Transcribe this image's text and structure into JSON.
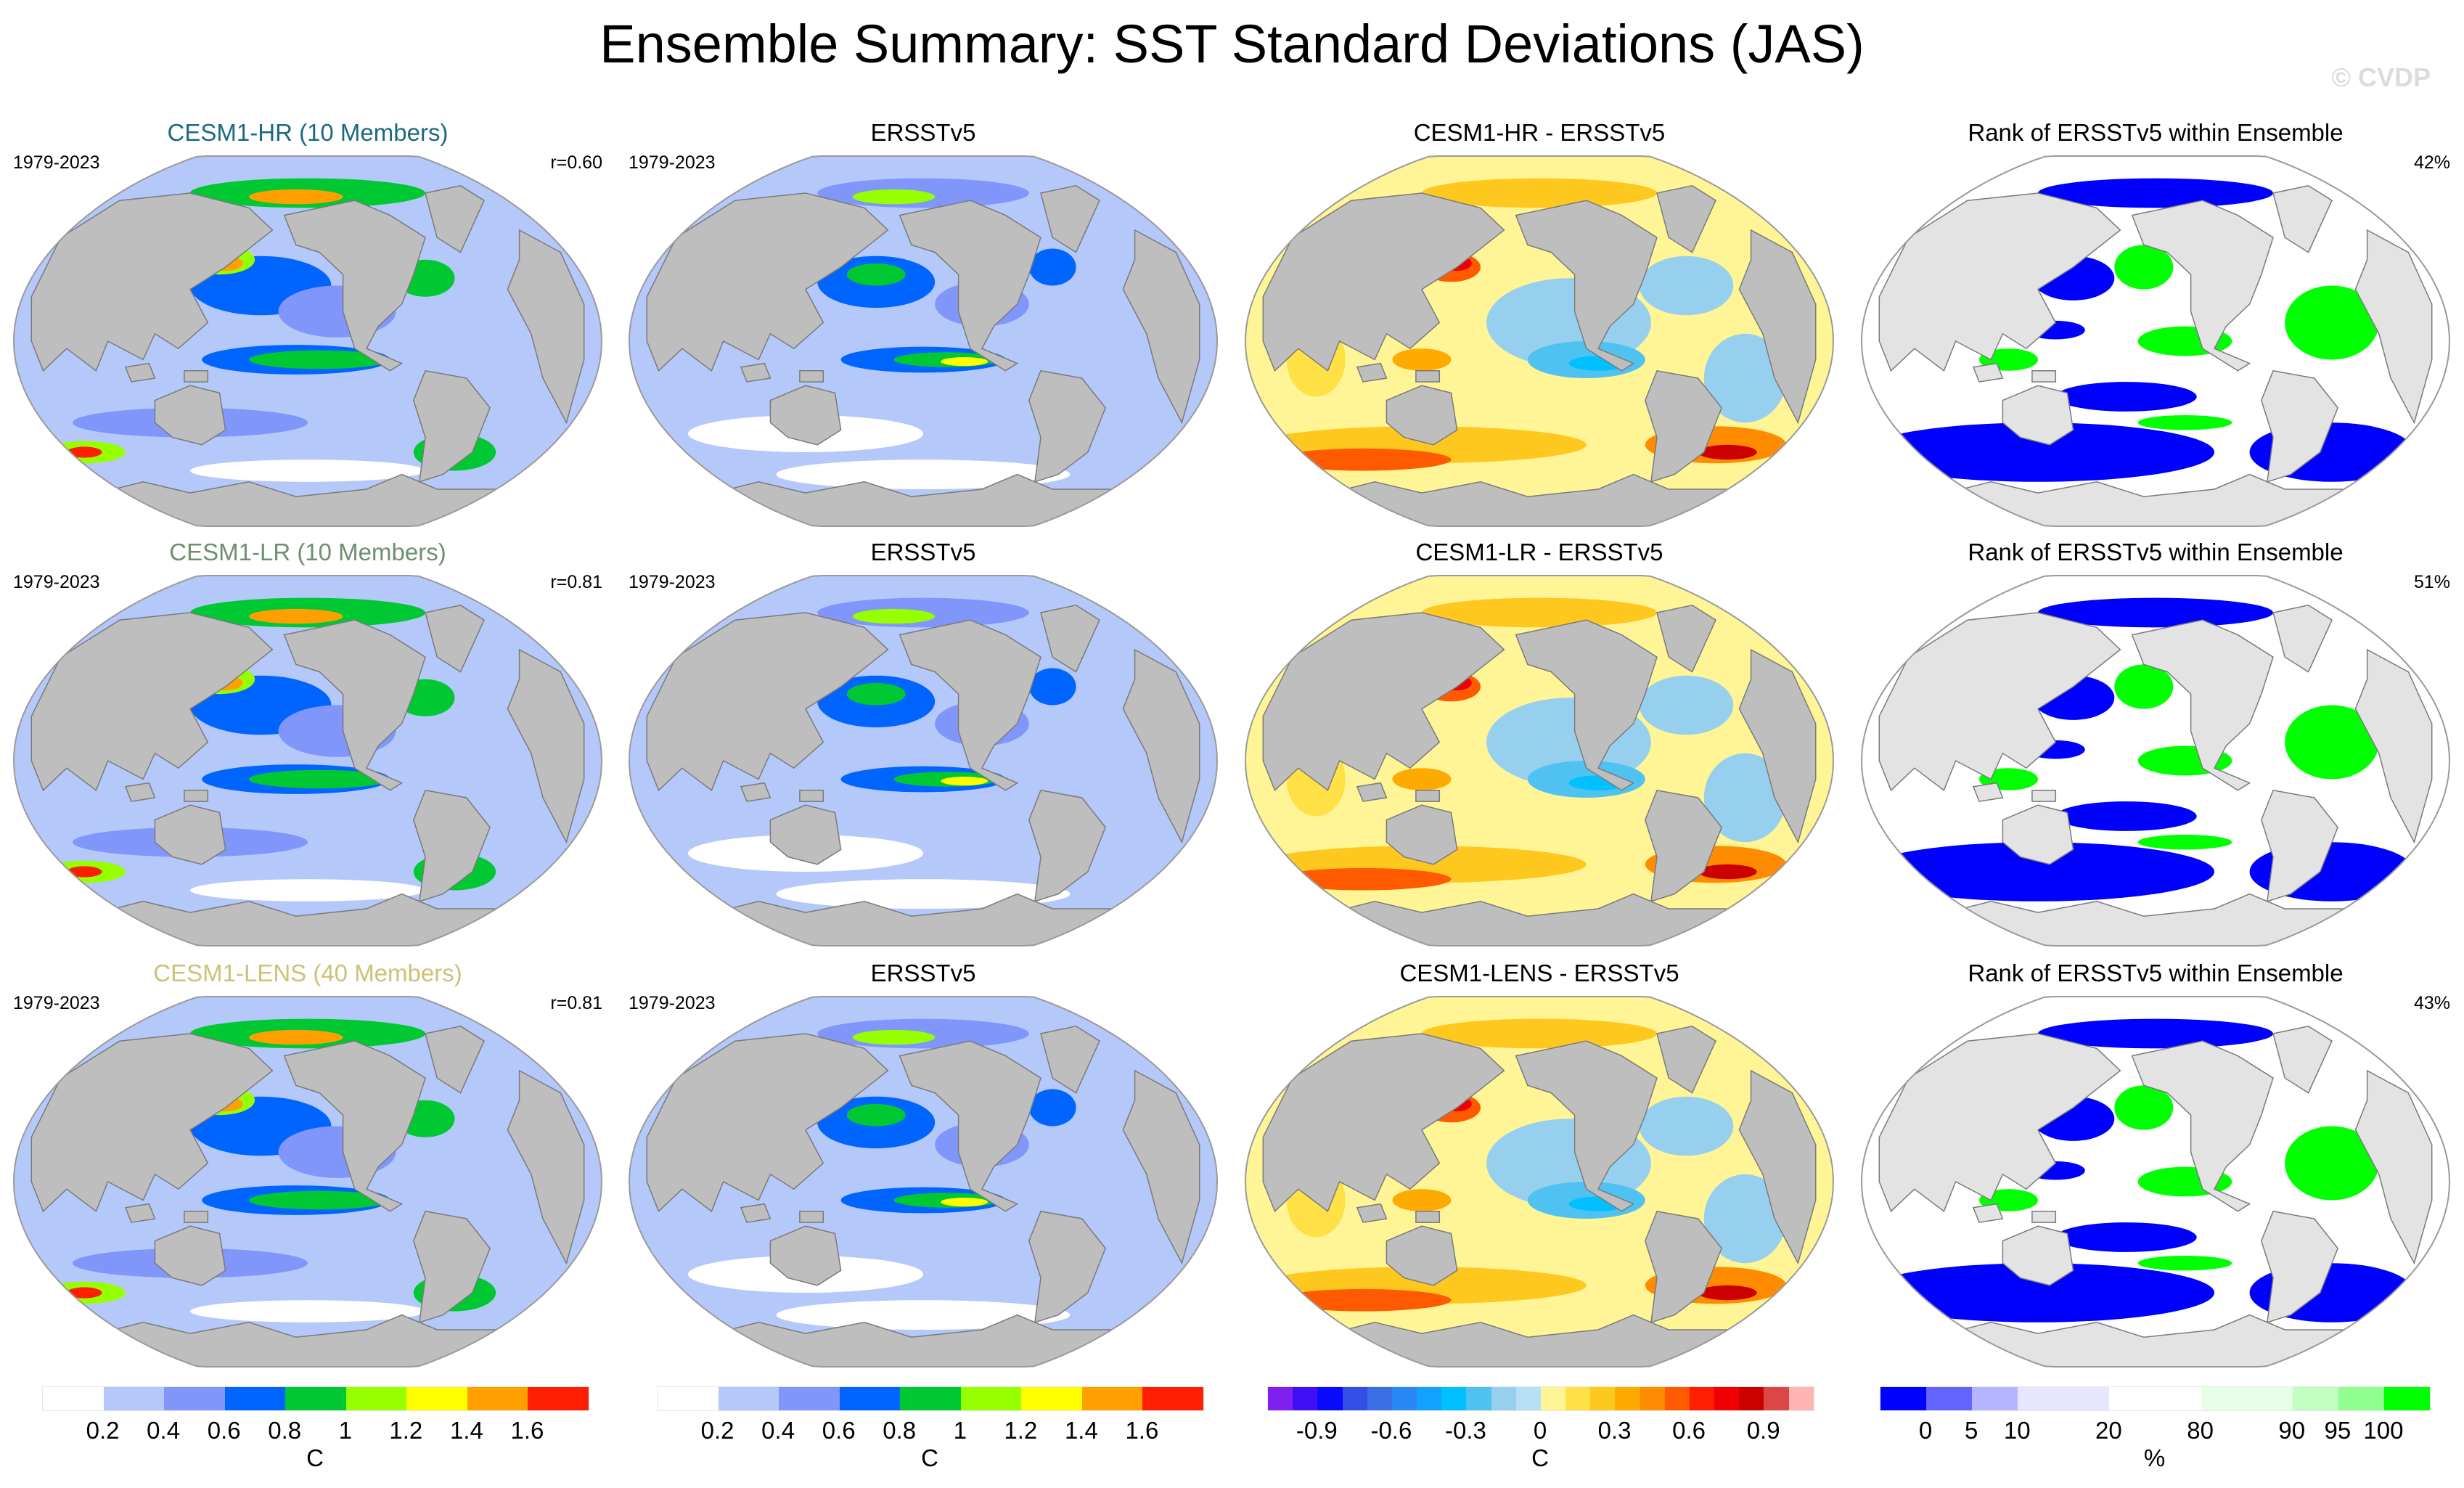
{
  "title": "Ensemble Summary: SST Standard Deviations (JAS)",
  "watermark": "© CVDP",
  "colors": {
    "land": "#bebebe",
    "land_rank": "#e3e3e3",
    "coast": "#7a7a7a",
    "row_title_colors": [
      "#1b6a80",
      "#6e8f6e",
      "#cfc078"
    ]
  },
  "chart_data": [
    {
      "type": "heatmap",
      "projection": "robinson-like, Pacific-centered",
      "rows": [
        {
          "ensemble": "CESM1-HR (10 Members)",
          "panels": [
            {
              "kind": "sd",
              "title": "CESM1-HR (10 Members)",
              "period": "1979-2023",
              "stat": "r=0.60"
            },
            {
              "kind": "sd_obs",
              "title": "ERSSTv5",
              "period": "1979-2023",
              "stat": ""
            },
            {
              "kind": "diff",
              "title": "CESM1-HR - ERSSTv5",
              "period": "",
              "stat": ""
            },
            {
              "kind": "rank",
              "title": "Rank of ERSSTv5 within Ensemble",
              "period": "",
              "stat": "42%"
            }
          ]
        },
        {
          "ensemble": "CESM1-LR (10 Members)",
          "panels": [
            {
              "kind": "sd",
              "title": "CESM1-LR (10 Members)",
              "period": "1979-2023",
              "stat": "r=0.81"
            },
            {
              "kind": "sd_obs",
              "title": "ERSSTv5",
              "period": "1979-2023",
              "stat": ""
            },
            {
              "kind": "diff",
              "title": "CESM1-LR - ERSSTv5",
              "period": "",
              "stat": ""
            },
            {
              "kind": "rank",
              "title": "Rank of ERSSTv5 within Ensemble",
              "period": "",
              "stat": "51%"
            }
          ]
        },
        {
          "ensemble": "CESM1-LENS (40 Members)",
          "panels": [
            {
              "kind": "sd",
              "title": "CESM1-LENS (40 Members)",
              "period": "1979-2023",
              "stat": "r=0.81"
            },
            {
              "kind": "sd_obs",
              "title": "ERSSTv5",
              "period": "1979-2023",
              "stat": ""
            },
            {
              "kind": "diff",
              "title": "CESM1-LENS - ERSSTv5",
              "period": "",
              "stat": ""
            },
            {
              "kind": "rank",
              "title": "Rank of ERSSTv5 within Ensemble",
              "period": "",
              "stat": "43%"
            }
          ]
        }
      ],
      "colorbars": [
        {
          "name": "sd-model",
          "colors": [
            "#ffffff",
            "#b4c8fa",
            "#8096fa",
            "#0064ff",
            "#00c832",
            "#96ff00",
            "#ffff00",
            "#ffa000",
            "#ff1e00"
          ],
          "ticks": [
            "0.2",
            "0.4",
            "0.6",
            "0.8",
            "1",
            "1.2",
            "1.4",
            "1.6"
          ],
          "unit": "C"
        },
        {
          "name": "sd-obs",
          "colors": [
            "#ffffff",
            "#b4c8fa",
            "#8096fa",
            "#0064ff",
            "#00c832",
            "#96ff00",
            "#ffff00",
            "#ffa000",
            "#ff1e00"
          ],
          "ticks": [
            "0.2",
            "0.4",
            "0.6",
            "0.8",
            "1",
            "1.2",
            "1.4",
            "1.6"
          ],
          "unit": "C"
        },
        {
          "name": "difference",
          "colors": [
            "#8020f0",
            "#4010f5",
            "#0a0aff",
            "#3250e8",
            "#3c6ee6",
            "#2888f5",
            "#14a0ff",
            "#00c0ff",
            "#50c2f2",
            "#96d0ee",
            "#b8e0f5",
            "#fff596",
            "#ffe146",
            "#ffc81e",
            "#ffaa00",
            "#ff8c00",
            "#ff5a00",
            "#ff1e00",
            "#f00000",
            "#cd0000",
            "#dc4646",
            "#ffb4b4"
          ],
          "ticks": [
            "-0.9",
            "-0.6",
            "-0.3",
            "0",
            "0.3",
            "0.6",
            "0.9"
          ],
          "tick_positions": [
            2,
            5,
            8,
            11,
            14,
            17,
            20
          ],
          "unit": "C"
        },
        {
          "name": "rank",
          "colors": [
            "#0000ff",
            "#6464ff",
            "#b4b4ff",
            "#e6e6ff",
            "#ffffff",
            "#e6ffe6",
            "#c0ffc0",
            "#90ff90",
            "#00ff00"
          ],
          "widths": [
            1,
            1,
            1,
            2,
            2,
            2,
            1,
            1,
            1
          ],
          "ticks": [
            "0",
            "5",
            "10",
            "20",
            "80",
            "90",
            "95",
            "100"
          ],
          "unit": "%"
        }
      ]
    }
  ]
}
